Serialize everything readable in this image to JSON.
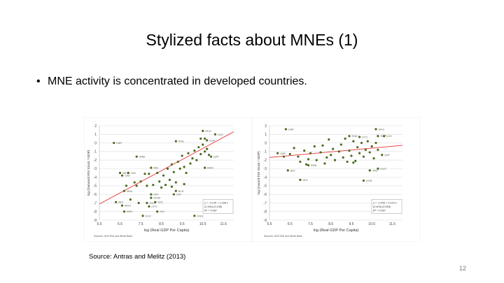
{
  "slide": {
    "title": "Stylized facts about MNEs (1)",
    "bullet": "MNE activity is concentrated in developed countries.",
    "source": "Source: Antras and Melitz (2013)",
    "page_number": "12"
  },
  "chart_data": [
    {
      "type": "scatter",
      "xlabel": "log (Real GDP Per Capita)",
      "ylabel": "log (Outward FDI Stock / GDP)",
      "note": "Sources: UNCTAD and World Bank",
      "xlim": [
        5.5,
        12.0
      ],
      "ylim": [
        -9,
        2
      ],
      "xticks": [
        5.5,
        6.5,
        7.5,
        8.5,
        9.5,
        10.5,
        11.5
      ],
      "yticks": [
        2,
        1,
        0,
        -1,
        -2,
        -3,
        -4,
        -5,
        -6,
        -7,
        -8,
        -9
      ],
      "grid": "horizontal",
      "point_color": "#4a6b1e",
      "line_color": "#e8474a",
      "fit": {
        "intercept": -14.25,
        "slope": 1.296,
        "text": [
          "y = -14.25 + 1.296 x",
          "(1.394)   (0.136)",
          "R² = 0.487"
        ]
      },
      "labeled_points": [
        [
          "LBR",
          6.2,
          0
        ],
        [
          "ZMB",
          7.3,
          -1.6
        ],
        [
          "HKG",
          10.5,
          1.4
        ],
        [
          "LUX",
          11.1,
          1.0
        ],
        [
          "SGP",
          10.7,
          0.3
        ],
        [
          "PAN",
          9.2,
          0.2
        ],
        [
          "QAT",
          10.9,
          -1.6
        ],
        [
          "BRN",
          10.6,
          -2.9
        ],
        [
          "IND",
          8.0,
          -2.9
        ],
        [
          "GIN",
          6.9,
          -3.5
        ],
        [
          "NER",
          6.5,
          -3.5
        ],
        [
          "CAF",
          6.6,
          -3.8
        ],
        [
          "BLR",
          9.2,
          -5.6
        ],
        [
          "CRI",
          9.1,
          -6.0
        ],
        [
          "ERI",
          8.0,
          -6.0
        ],
        [
          "WSM",
          8.0,
          -6.4
        ],
        [
          "SOL",
          8.2,
          -6.9
        ],
        [
          "GUY",
          7.8,
          -7.0
        ],
        [
          "CPV",
          7.9,
          -7.4
        ],
        [
          "SLV",
          8.3,
          -8.0
        ],
        [
          "KGZ",
          7.6,
          -8.5
        ],
        [
          "GNQ",
          10.1,
          -8.5
        ],
        [
          "BDI",
          6.3,
          -6.9
        ],
        [
          "MDG",
          6.6,
          -7.3
        ],
        [
          "BEN",
          6.7,
          -8.0
        ],
        [
          "MWI",
          6.7,
          -5.6
        ]
      ],
      "points": [
        [
          7.2,
          -4.6
        ],
        [
          7.5,
          -4.5
        ],
        [
          7.7,
          -3.6
        ],
        [
          7.9,
          -3.6
        ],
        [
          8.1,
          -4.9
        ],
        [
          8.3,
          -3.5
        ],
        [
          8.4,
          -4.5
        ],
        [
          8.6,
          -3.8
        ],
        [
          8.7,
          -4.9
        ],
        [
          8.8,
          -3.0
        ],
        [
          8.9,
          -4.3
        ],
        [
          9.0,
          -2.5
        ],
        [
          9.1,
          -3.4
        ],
        [
          9.2,
          -4.6
        ],
        [
          9.3,
          -2.2
        ],
        [
          9.4,
          -3.0
        ],
        [
          9.5,
          -1.5
        ],
        [
          9.6,
          -2.8
        ],
        [
          9.7,
          -3.5
        ],
        [
          9.8,
          -1.2
        ],
        [
          9.9,
          -2.4
        ],
        [
          10.0,
          -1.8
        ],
        [
          10.1,
          -0.9
        ],
        [
          10.2,
          -2.0
        ],
        [
          10.3,
          -0.5
        ],
        [
          10.4,
          -1.3
        ],
        [
          10.5,
          -0.2
        ],
        [
          10.6,
          -1.0
        ],
        [
          10.7,
          -0.7
        ],
        [
          10.8,
          -1.4
        ],
        [
          10.4,
          0.5
        ],
        [
          10.6,
          0.5
        ],
        [
          9.0,
          -5.1
        ],
        [
          8.5,
          -5.2
        ],
        [
          7.4,
          -7.0
        ],
        [
          7.0,
          -6.6
        ],
        [
          7.3,
          -5.0
        ],
        [
          6.8,
          -5.0
        ],
        [
          7.8,
          -5.0
        ],
        [
          9.6,
          -4.8
        ]
      ]
    },
    {
      "type": "scatter",
      "xlabel": "log (Real GDP Per Capita)",
      "ylabel": "log (Inward FDI Stock / GDP)",
      "note": "Sources: UNCTAD and World Bank",
      "xlim": [
        5.5,
        12.0
      ],
      "ylim": [
        -9,
        2
      ],
      "xticks": [
        5.5,
        6.5,
        7.5,
        8.5,
        9.5,
        10.5,
        11.5
      ],
      "yticks": [
        2,
        1,
        0,
        -1,
        -2,
        -3,
        -4,
        -5,
        -6,
        -7,
        -8,
        -9
      ],
      "grid": "horizontal",
      "point_color": "#4a6b1e",
      "line_color": "#e8474a",
      "fit": {
        "intercept": -2.905,
        "slope": 0.219,
        "text": [
          "y = -2.905 + 0.219 x",
          "(0.403)   (0.054)",
          "R² = 0.067"
        ]
      },
      "labeled_points": [
        [
          "LBR",
          6.3,
          1.6
        ],
        [
          "HKG",
          10.7,
          1.6
        ],
        [
          "SGP",
          10.8,
          0.8
        ],
        [
          "LUX",
          11.1,
          0.8
        ],
        [
          "KNA",
          9.4,
          0.8
        ],
        [
          "DYC",
          9.9,
          0.7
        ],
        [
          "ZAR",
          5.9,
          -1.2
        ],
        [
          "BDI",
          6.4,
          -3.2
        ],
        [
          "NPL",
          7.0,
          -4.3
        ],
        [
          "KWT",
          10.8,
          -3.0
        ],
        [
          "JPN",
          10.4,
          -3.2
        ],
        [
          "KOR",
          10.1,
          -4.4
        ],
        [
          "QAT",
          11.0,
          -1.4
        ],
        [
          "BRB",
          7.4,
          -2.6
        ]
      ],
      "points": [
        [
          6.2,
          -1.6
        ],
        [
          6.5,
          -1.3
        ],
        [
          6.7,
          -0.6
        ],
        [
          6.9,
          -1.6
        ],
        [
          7.0,
          -2.2
        ],
        [
          7.2,
          -0.9
        ],
        [
          7.3,
          -2.5
        ],
        [
          7.5,
          -1.2
        ],
        [
          7.7,
          -0.4
        ],
        [
          7.8,
          -2.0
        ],
        [
          8.0,
          -1.1
        ],
        [
          8.1,
          -0.3
        ],
        [
          8.2,
          -2.4
        ],
        [
          8.4,
          0.4
        ],
        [
          8.5,
          -1.4
        ],
        [
          8.6,
          -0.7
        ],
        [
          8.7,
          -2.0
        ],
        [
          8.9,
          -1.0
        ],
        [
          9.0,
          -0.2
        ],
        [
          9.1,
          -1.7
        ],
        [
          9.2,
          0.5
        ],
        [
          9.3,
          -2.2
        ],
        [
          9.4,
          -0.9
        ],
        [
          9.5,
          -1.5
        ],
        [
          9.6,
          0.2
        ],
        [
          9.7,
          -2.1
        ],
        [
          9.8,
          -0.5
        ],
        [
          9.9,
          -1.2
        ],
        [
          10.0,
          0.0
        ],
        [
          10.1,
          -1.6
        ],
        [
          10.2,
          -0.8
        ],
        [
          10.3,
          0.2
        ],
        [
          10.4,
          -1.1
        ],
        [
          10.5,
          -0.4
        ],
        [
          10.6,
          -1.8
        ],
        [
          10.7,
          0.0
        ],
        [
          10.8,
          -0.8
        ],
        [
          8.3,
          -1.7
        ],
        [
          7.4,
          -1.9
        ],
        [
          9.6,
          -2.3
        ]
      ]
    }
  ]
}
